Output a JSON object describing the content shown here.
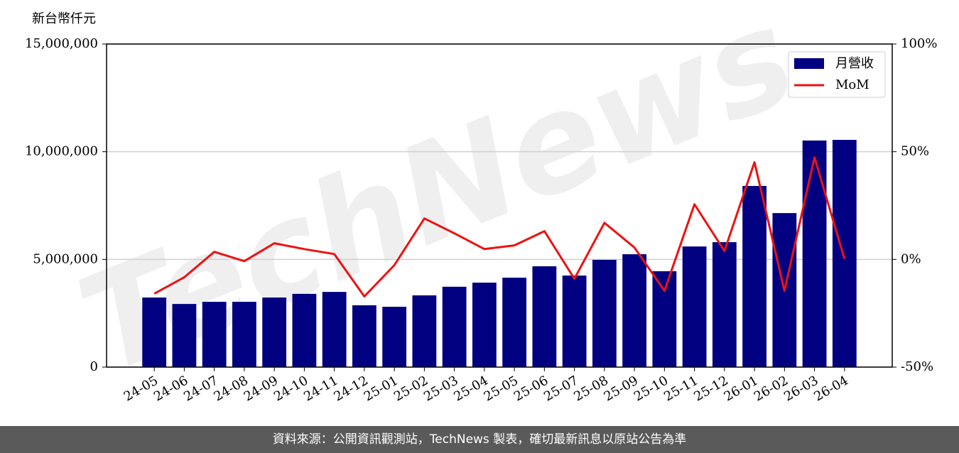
{
  "chart_data": {
    "type": "bar-line",
    "y_label": "新台幣仟元",
    "watermark": "TechNews",
    "categories": [
      "24-05",
      "24-06",
      "24-07",
      "24-08",
      "24-09",
      "24-10",
      "24-11",
      "24-12",
      "25-01",
      "25-02",
      "25-03",
      "25-04",
      "25-05",
      "25-06",
      "25-07",
      "25-08",
      "25-09",
      "25-10",
      "25-11",
      "25-12",
      "26-01",
      "26-02",
      "26-03",
      "26-04"
    ],
    "series": [
      {
        "name": "月營收",
        "color": "#000080",
        "kind": "bar",
        "values": [
          3230000,
          2930000,
          3030000,
          3030000,
          3230000,
          3400000,
          3490000,
          2870000,
          2800000,
          3330000,
          3730000,
          3920000,
          4150000,
          4680000,
          4250000,
          4980000,
          5240000,
          4450000,
          5600000,
          5800000,
          8410000,
          7150000,
          10520000,
          10550000
        ]
      },
      {
        "name": "MoM",
        "color": "#ee1111",
        "kind": "line",
        "axis": "y2",
        "values": [
          -15.9,
          -8.3,
          3.5,
          -0.8,
          7.5,
          4.8,
          2.5,
          -17.2,
          -2.7,
          19.0,
          12.1,
          4.8,
          6.5,
          13.1,
          -9.0,
          17.0,
          5.5,
          -14.6,
          25.6,
          3.9,
          45.1,
          -14.6,
          47.4,
          0.2
        ]
      }
    ],
    "ylim": [
      0,
      15000000
    ],
    "yticks": [
      0,
      {
        "value": 5000000,
        "label": "5,000,000"
      },
      {
        "value": 10000000,
        "label": "10,000,000"
      },
      {
        "value": 15000000,
        "label": "15,000,000"
      }
    ],
    "y2lim": [
      -50,
      100
    ],
    "y2ticks": [
      {
        "value": -50,
        "label": "-50%"
      },
      {
        "value": 0,
        "label": "0%"
      },
      {
        "value": 50,
        "label": "50%"
      },
      {
        "value": 100,
        "label": "100%"
      }
    ],
    "grid": true,
    "legend": "upper right"
  },
  "footer": "資料來源：公開資訊觀測站，TechNews 製表，確切最新訊息以原站公告為準"
}
